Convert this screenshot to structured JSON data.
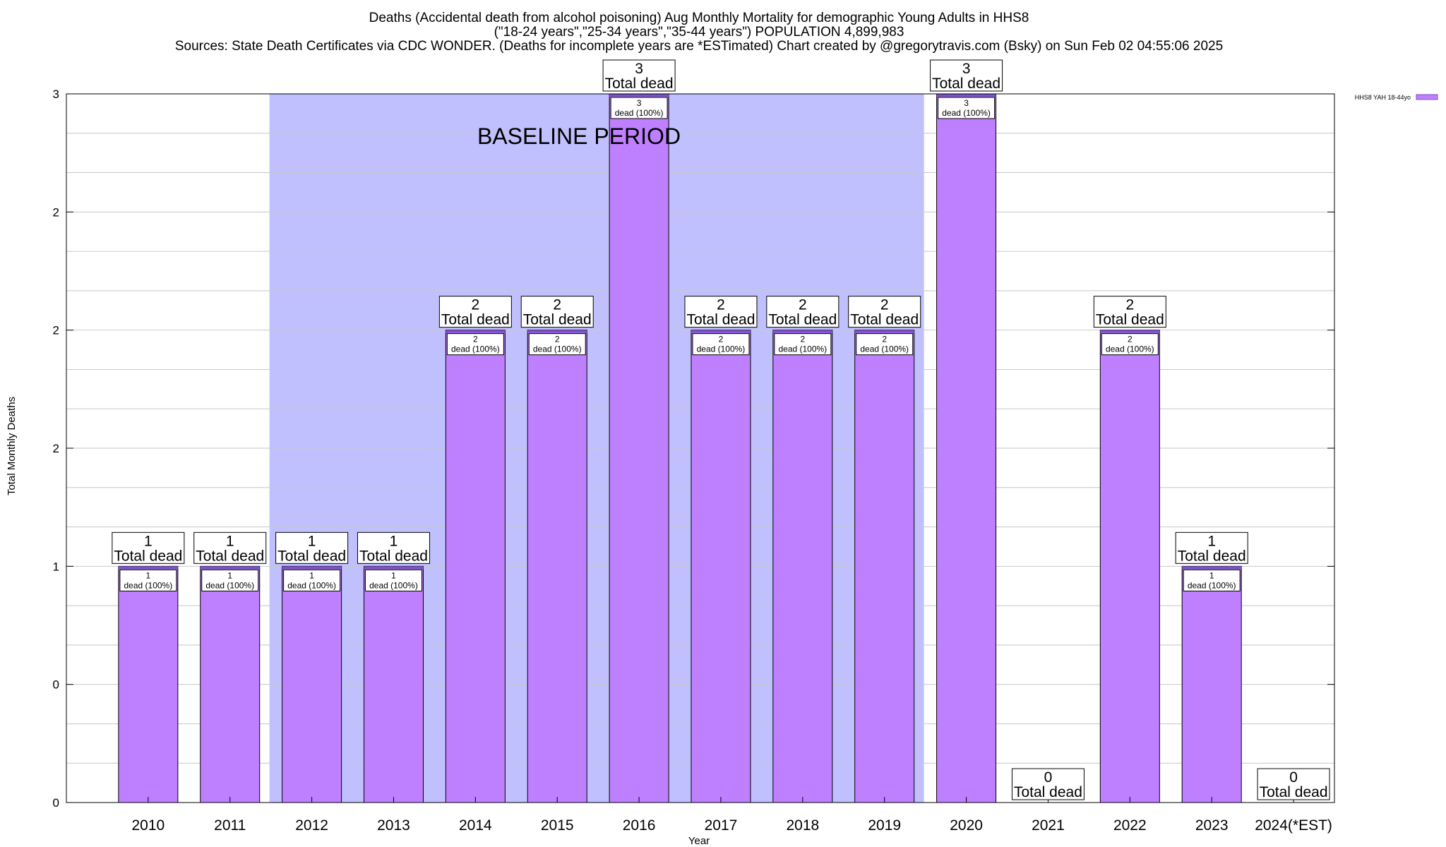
{
  "chart_data": {
    "type": "bar",
    "title_lines": [
      "Deaths (Accidental death from alcohol poisoning) Aug Monthly Mortality for demographic Young Adults in HHS8",
      "(\"18-24 years\",\"25-34 years\",\"35-44 years\") POPULATION 4,899,983",
      "Sources: State Death Certificates via CDC WONDER. (Deaths for incomplete years are *ESTimated)               Chart created by @gregorytravis.com (Bsky) on Sun Feb 02 04:55:06 2025"
    ],
    "xlabel": "Year",
    "ylabel": "Total Monthly Deaths",
    "ylim": [
      0,
      3
    ],
    "y_tick_values": [
      0,
      0.5,
      1,
      1.5,
      2,
      2.5,
      3
    ],
    "y_tick_labels": [
      "0",
      "0",
      "1",
      "2",
      "2",
      "2",
      "3"
    ],
    "categories": [
      "2010",
      "2011",
      "2012",
      "2013",
      "2014",
      "2015",
      "2016",
      "2017",
      "2018",
      "2019",
      "2020",
      "2021",
      "2022",
      "2023",
      "2024(*EST)"
    ],
    "values": [
      1,
      1,
      1,
      1,
      2,
      2,
      3,
      2,
      2,
      2,
      3,
      0,
      2,
      1,
      0
    ],
    "total_label_suffix": "Total dead",
    "inner_label_suffix": "dead (100%)",
    "baseline_period": {
      "label": "BASELINE PERIOD",
      "start": "2012",
      "end": "2019"
    },
    "legend": {
      "entry": "HHS8 YAH 18-44yo",
      "position": "top-right"
    },
    "grid": true,
    "colors": {
      "bar": "#bf80ff",
      "bar_top": "#7b52c9",
      "baseline_shade": "#c0c0ff",
      "grid": "#c8c8c8"
    }
  }
}
